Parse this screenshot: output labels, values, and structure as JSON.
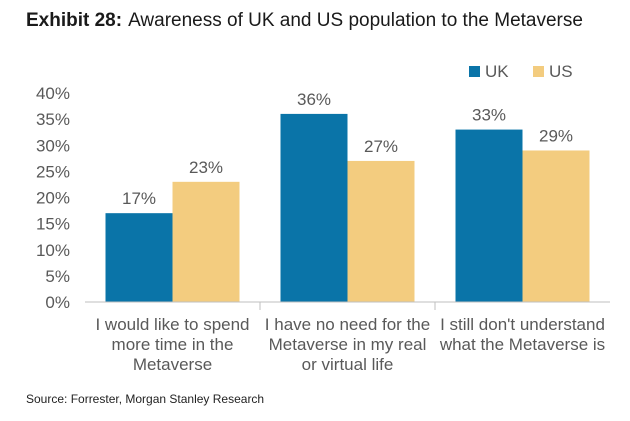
{
  "header": {
    "exhibit": "Exhibit 28:",
    "title": "Awareness of UK and US population to the Metaverse"
  },
  "source": "Source: Forrester, Morgan Stanley Research",
  "chart_data": {
    "type": "bar",
    "categories": [
      [
        "I would like to spend",
        "more time in the",
        "Metaverse"
      ],
      [
        "I have no need for the",
        "Metaverse in my real",
        "or virtual life"
      ],
      [
        "I still don't understand",
        "what the Metaverse is"
      ]
    ],
    "series": [
      {
        "name": "UK",
        "color": "#0a74a8",
        "values": [
          17,
          36,
          33
        ],
        "labels": [
          "17%",
          "36%",
          "33%"
        ]
      },
      {
        "name": "US",
        "color": "#f3cc7f",
        "values": [
          23,
          27,
          29
        ],
        "labels": [
          "23%",
          "27%",
          "29%"
        ]
      }
    ],
    "ylim": [
      0,
      40
    ],
    "yticks": [
      "0%",
      "5%",
      "10%",
      "15%",
      "20%",
      "25%",
      "30%",
      "35%",
      "40%"
    ],
    "legend": "top-right",
    "grid": false
  }
}
